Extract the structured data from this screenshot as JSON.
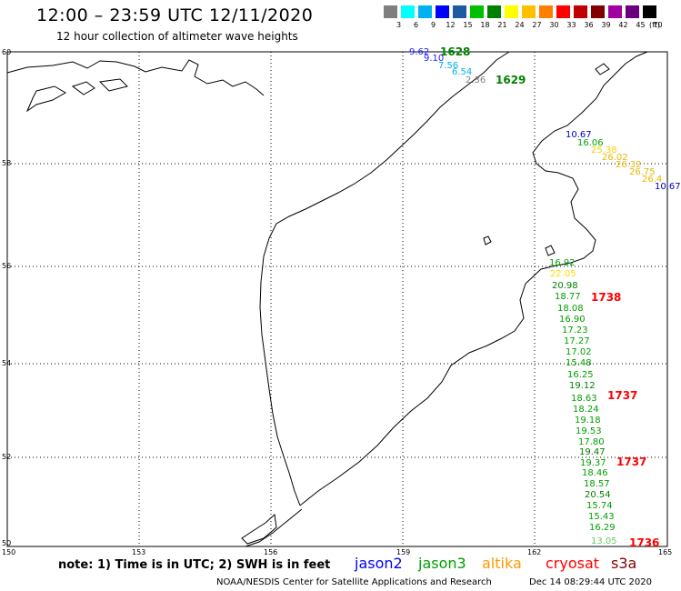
{
  "header": {
    "title": "12:00 – 23:59 UTC 12/11/2020",
    "subtitle": "12 hour collection of altimeter wave heights"
  },
  "legend": {
    "colors": [
      "#7f7f7f",
      "#00ffff",
      "#00b0f0",
      "#0000ff",
      "#1e5aa0",
      "#00c000",
      "#008000",
      "#ffff00",
      "#ffc000",
      "#ff8000",
      "#ff0000",
      "#c00000",
      "#800000",
      "#a000a0",
      "#6a0080",
      "#000000"
    ],
    "labels": [
      "3",
      "6",
      "9",
      "12",
      "15",
      "18",
      "21",
      "24",
      "27",
      "30",
      "33",
      "36",
      "39",
      "42",
      "45",
      "70"
    ],
    "unit": "(ft)"
  },
  "axes": {
    "lon_labels": [
      "150",
      "153",
      "156",
      "159",
      "162",
      "165"
    ],
    "lat_labels": [
      "60",
      "58",
      "56",
      "54",
      "52",
      "50"
    ]
  },
  "passes": [
    {
      "label": "1628",
      "color": "#008000"
    },
    {
      "label": "1629",
      "color": "#008000"
    },
    {
      "label": "1738",
      "color": "#ff0000"
    },
    {
      "label": "1737",
      "color": "#ff0000"
    },
    {
      "label": "1737",
      "color": "#ff0000"
    },
    {
      "label": "1736",
      "color": "#ff0000"
    }
  ],
  "wave_heights": [
    {
      "v": "9.62",
      "c": "#1a1aff"
    },
    {
      "v": "9.10",
      "c": "#1a1aff"
    },
    {
      "v": "7.56",
      "c": "#00b0f0"
    },
    {
      "v": "6.54",
      "c": "#00b0f0"
    },
    {
      "v": "2.36",
      "c": "#7f7f7f"
    },
    {
      "v": "10.67",
      "c": "#0000c0"
    },
    {
      "v": "16.06",
      "c": "#00a000"
    },
    {
      "v": "25.38",
      "c": "#ffcc00"
    },
    {
      "v": "26.02",
      "c": "#e6b800"
    },
    {
      "v": "26.32",
      "c": "#e6b800"
    },
    {
      "v": "26.75",
      "c": "#e6b800"
    },
    {
      "v": "26.4",
      "c": "#e6b800"
    },
    {
      "v": "10.67",
      "c": "#0000c0"
    },
    {
      "v": "16.92",
      "c": "#00a000"
    },
    {
      "v": "22.05",
      "c": "#ffdd00"
    },
    {
      "v": "20.98",
      "c": "#008000"
    },
    {
      "v": "18.77",
      "c": "#00a000"
    },
    {
      "v": "18.08",
      "c": "#00a000"
    },
    {
      "v": "16.90",
      "c": "#00a000"
    },
    {
      "v": "17.23",
      "c": "#00a000"
    },
    {
      "v": "17.27",
      "c": "#00a000"
    },
    {
      "v": "17.02",
      "c": "#00a000"
    },
    {
      "v": "15.48",
      "c": "#00a000"
    },
    {
      "v": "16.25",
      "c": "#00a000"
    },
    {
      "v": "19.12",
      "c": "#008000"
    },
    {
      "v": "18.63",
      "c": "#00a000"
    },
    {
      "v": "18.24",
      "c": "#00a000"
    },
    {
      "v": "19.18",
      "c": "#00a000"
    },
    {
      "v": "19.53",
      "c": "#00a000"
    },
    {
      "v": "17.80",
      "c": "#00a000"
    },
    {
      "v": "19.47",
      "c": "#008000"
    },
    {
      "v": "19.37",
      "c": "#00a000"
    },
    {
      "v": "18.46",
      "c": "#00a000"
    },
    {
      "v": "18.57",
      "c": "#00a000"
    },
    {
      "v": "20.54",
      "c": "#008000"
    },
    {
      "v": "15.74",
      "c": "#00a000"
    },
    {
      "v": "15.43",
      "c": "#00a000"
    },
    {
      "v": "16.29",
      "c": "#00a000"
    },
    {
      "v": "13.05",
      "c": "#66cc66"
    }
  ],
  "footer": {
    "note": "note:  1) Time is in UTC;  2) SWH is in feet",
    "satellites": [
      {
        "name": "jason2",
        "color": "#0000ff"
      },
      {
        "name": "jason3",
        "color": "#00a000"
      },
      {
        "name": "altika",
        "color": "#ff9900"
      },
      {
        "name": "cryosat",
        "color": "#ff0000"
      },
      {
        "name": "s3a",
        "color": "#800000"
      }
    ],
    "credit": "NOAA/NESDIS Center for Satellite Applications and Research",
    "timestamp": "Dec 14 08:29:44 UTC 2020"
  }
}
